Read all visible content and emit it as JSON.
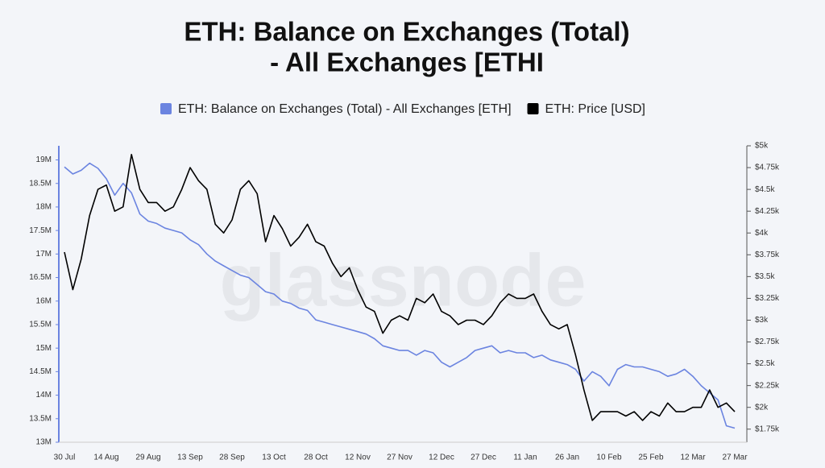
{
  "chart_data": {
    "type": "line",
    "title": [
      "ETH: Balance on Exchanges (Total)",
      "- All Exchanges [ETHI"
    ],
    "watermark": "glassnode",
    "categories": [
      "30 Jul",
      null,
      null,
      null,
      null,
      "14 Aug",
      null,
      null,
      null,
      null,
      "29 Aug",
      null,
      null,
      null,
      null,
      "13 Sep",
      null,
      null,
      null,
      null,
      "28 Sep",
      null,
      null,
      null,
      null,
      "13 Oct",
      null,
      null,
      null,
      null,
      "28 Oct",
      null,
      null,
      null,
      null,
      "12 Nov",
      null,
      null,
      null,
      null,
      "27 Nov",
      null,
      null,
      null,
      null,
      "12 Dec",
      null,
      null,
      null,
      null,
      "27 Dec",
      null,
      null,
      null,
      null,
      "11 Jan",
      null,
      null,
      null,
      null,
      "26 Jan",
      null,
      null,
      null,
      null,
      "10 Feb",
      null,
      null,
      null,
      null,
      "25 Feb",
      null,
      null,
      null,
      null,
      "12 Mar",
      null,
      null,
      null,
      null,
      "27 Mar"
    ],
    "series": [
      {
        "name": "ETH: Balance on Exchanges (Total) - All Exchanges [ETH]",
        "color": "#6b84e0",
        "axis": "y",
        "values": [
          18850000,
          18700000,
          18780000,
          18930000,
          18820000,
          18600000,
          18250000,
          18500000,
          18300000,
          17850000,
          17700000,
          17650000,
          17550000,
          17500000,
          17450000,
          17300000,
          17200000,
          17000000,
          16850000,
          16750000,
          16650000,
          16550000,
          16500000,
          16350000,
          16200000,
          16150000,
          16000000,
          15950000,
          15850000,
          15800000,
          15600000,
          15550000,
          15500000,
          15450000,
          15400000,
          15350000,
          15300000,
          15200000,
          15050000,
          15000000,
          14950000,
          14950000,
          14850000,
          14950000,
          14900000,
          14700000,
          14600000,
          14700000,
          14800000,
          14950000,
          15000000,
          15050000,
          14900000,
          14950000,
          14900000,
          14900000,
          14800000,
          14850000,
          14750000,
          14700000,
          14650000,
          14550000,
          14300000,
          14500000,
          14400000,
          14200000,
          14550000,
          14650000,
          14600000,
          14600000,
          14550000,
          14500000,
          14400000,
          14450000,
          14550000,
          14400000,
          14200000,
          14050000,
          13900000,
          13350000,
          13300000
        ]
      },
      {
        "name": "ETH: Price [USD]",
        "color": "#000000",
        "axis": "y2",
        "values": [
          3780,
          3350,
          3700,
          4200,
          4500,
          4550,
          4250,
          4300,
          4900,
          4500,
          4350,
          4350,
          4250,
          4300,
          4500,
          4750,
          4600,
          4500,
          4100,
          4000,
          4150,
          4500,
          4600,
          4450,
          3900,
          4200,
          4050,
          3850,
          3950,
          4100,
          3900,
          3850,
          3650,
          3500,
          3600,
          3350,
          3150,
          3100,
          2850,
          3000,
          3050,
          3000,
          3250,
          3200,
          3300,
          3100,
          3050,
          2950,
          3000,
          3000,
          2950,
          3050,
          3200,
          3300,
          3250,
          3250,
          3300,
          3100,
          2950,
          2900,
          2950,
          2600,
          2200,
          1850,
          1950,
          1950,
          1950,
          1900,
          1950,
          1850,
          1950,
          1900,
          2050,
          1950,
          1950,
          2000,
          2000,
          2200,
          2000,
          2050,
          1950
        ]
      }
    ],
    "ylim": [
      13000000,
      19300000
    ],
    "yticks": [
      {
        "value": 13000000,
        "label": "13M"
      },
      {
        "value": 13500000,
        "label": "13.5M"
      },
      {
        "value": 14000000,
        "label": "14M"
      },
      {
        "value": 14500000,
        "label": "14.5M"
      },
      {
        "value": 15000000,
        "label": "15M"
      },
      {
        "value": 15500000,
        "label": "15.5M"
      },
      {
        "value": 16000000,
        "label": "16M"
      },
      {
        "value": 16500000,
        "label": "16.5M"
      },
      {
        "value": 17000000,
        "label": "17M"
      },
      {
        "value": 17500000,
        "label": "17.5M"
      },
      {
        "value": 18000000,
        "label": "18M"
      },
      {
        "value": 18500000,
        "label": "18.5M"
      },
      {
        "value": 19000000,
        "label": "19M"
      }
    ],
    "y2lim": [
      1600,
      5000
    ],
    "y2ticks": [
      {
        "value": 1750,
        "label": "$1.75k"
      },
      {
        "value": 2000,
        "label": "$2k"
      },
      {
        "value": 2250,
        "label": "$2.25k"
      },
      {
        "value": 2500,
        "label": "$2.5k"
      },
      {
        "value": 2750,
        "label": "$2.75k"
      },
      {
        "value": 3000,
        "label": "$3k"
      },
      {
        "value": 3250,
        "label": "$3.25k"
      },
      {
        "value": 3500,
        "label": "$3.5k"
      },
      {
        "value": 3750,
        "label": "$3.75k"
      },
      {
        "value": 4000,
        "label": "$4k"
      },
      {
        "value": 4250,
        "label": "$4.25k"
      },
      {
        "value": 4500,
        "label": "$4.5k"
      },
      {
        "value": 4750,
        "label": "$4.75k"
      },
      {
        "value": 5000,
        "label": "$5k"
      }
    ],
    "grid": false
  }
}
